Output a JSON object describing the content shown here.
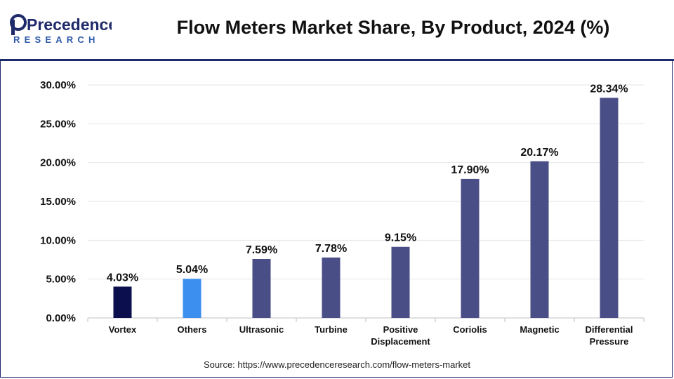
{
  "brand": {
    "logo_word": "Precedence",
    "logo_sub": "RESEARCH",
    "primary_color": "#1f2a6b",
    "accent_color": "#2e5aa8"
  },
  "header": {
    "title": "Flow Meters Market Share, By Product, 2024 (%)"
  },
  "footer": {
    "source": "Source: https://www.precedenceresearch.com/flow-meters-market"
  },
  "chart_data": {
    "type": "bar",
    "categories": [
      [
        "Vortex"
      ],
      [
        "Others"
      ],
      [
        "Ultrasonic"
      ],
      [
        "Turbine"
      ],
      [
        "Positive",
        "Displacement"
      ],
      [
        "Coriolis"
      ],
      [
        "Magnetic"
      ],
      [
        "Differential",
        "Pressure"
      ]
    ],
    "values": [
      4.03,
      5.04,
      7.59,
      7.78,
      9.15,
      17.9,
      20.17,
      28.34
    ],
    "value_labels": [
      "4.03%",
      "5.04%",
      "7.59%",
      "7.78%",
      "9.15%",
      "17.90%",
      "20.17%",
      "28.34%"
    ],
    "bar_colors": [
      "#0b0f4d",
      "#3d8fef",
      "#4a4e86",
      "#4a4e86",
      "#4a4e86",
      "#4a4e86",
      "#4a4e86",
      "#4a4e86"
    ],
    "yticks": [
      0,
      5,
      10,
      15,
      20,
      25,
      30
    ],
    "ytick_labels": [
      "0.00%",
      "5.00%",
      "10.00%",
      "15.00%",
      "20.00%",
      "25.00%",
      "30.00%"
    ],
    "ylim": [
      0,
      30
    ],
    "grid": true,
    "legend": "none"
  }
}
